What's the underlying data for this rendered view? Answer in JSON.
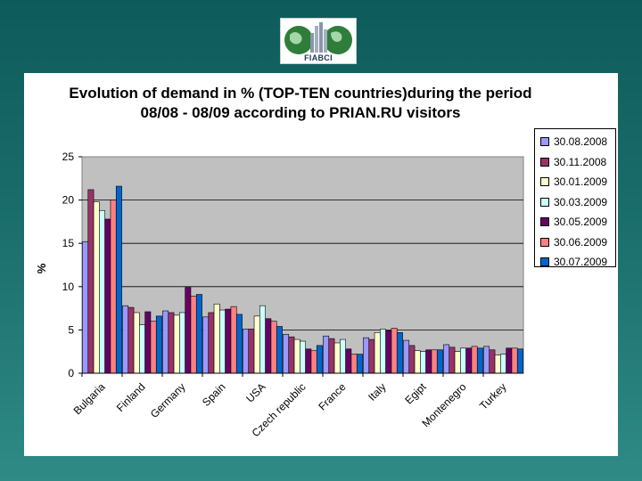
{
  "logo": {
    "text": "FIABCI"
  },
  "chart_data": {
    "type": "bar",
    "title": "Evolution of demand in %  (TOP-TEN countries)during the period 08/08 - 08/09 according to PRIAN.RU visitors",
    "xlabel": "",
    "ylabel": "%",
    "ylim": [
      0,
      25
    ],
    "yticks": [
      0,
      5,
      10,
      15,
      20,
      25
    ],
    "grid": true,
    "legend_position": "right",
    "categories": [
      "Bulgaria",
      "Finland",
      "Germany",
      "Spain",
      "USA",
      "Czech republic",
      "France",
      "Italy",
      "Egipt",
      "Montenegro",
      "Turkey"
    ],
    "series": [
      {
        "name": "30.08.2008",
        "color": "#9999ff",
        "values": [
          15.2,
          7.8,
          7.2,
          6.5,
          5.1,
          4.5,
          4.3,
          4.1,
          3.8,
          3.3,
          3.1
        ]
      },
      {
        "name": "30.11.2008",
        "color": "#993366",
        "values": [
          21.2,
          7.6,
          7.0,
          7.0,
          5.1,
          4.2,
          4.0,
          3.9,
          3.2,
          3.0,
          2.7
        ]
      },
      {
        "name": "30.01.2009",
        "color": "#ffffcc",
        "values": [
          19.8,
          7.0,
          6.7,
          8.0,
          6.6,
          3.9,
          3.5,
          4.7,
          2.6,
          2.5,
          2.1
        ]
      },
      {
        "name": "30.03.2009",
        "color": "#ccffff",
        "values": [
          18.8,
          5.6,
          7.0,
          7.3,
          7.8,
          3.7,
          3.9,
          5.1,
          2.5,
          2.9,
          2.2
        ]
      },
      {
        "name": "30.05.2009",
        "color": "#660066",
        "values": [
          17.8,
          7.1,
          9.9,
          7.4,
          6.3,
          2.8,
          2.8,
          4.9,
          2.7,
          2.9,
          2.9
        ]
      },
      {
        "name": "30.06.2009",
        "color": "#ff8080",
        "values": [
          20.0,
          6.0,
          8.9,
          7.7,
          6.0,
          2.6,
          2.2,
          5.2,
          2.7,
          3.1,
          2.9
        ]
      },
      {
        "name": "30.07.2009",
        "color": "#0066cc",
        "values": [
          21.6,
          6.6,
          9.1,
          6.8,
          5.4,
          3.2,
          2.2,
          4.7,
          2.7,
          2.9,
          2.8
        ]
      }
    ]
  }
}
